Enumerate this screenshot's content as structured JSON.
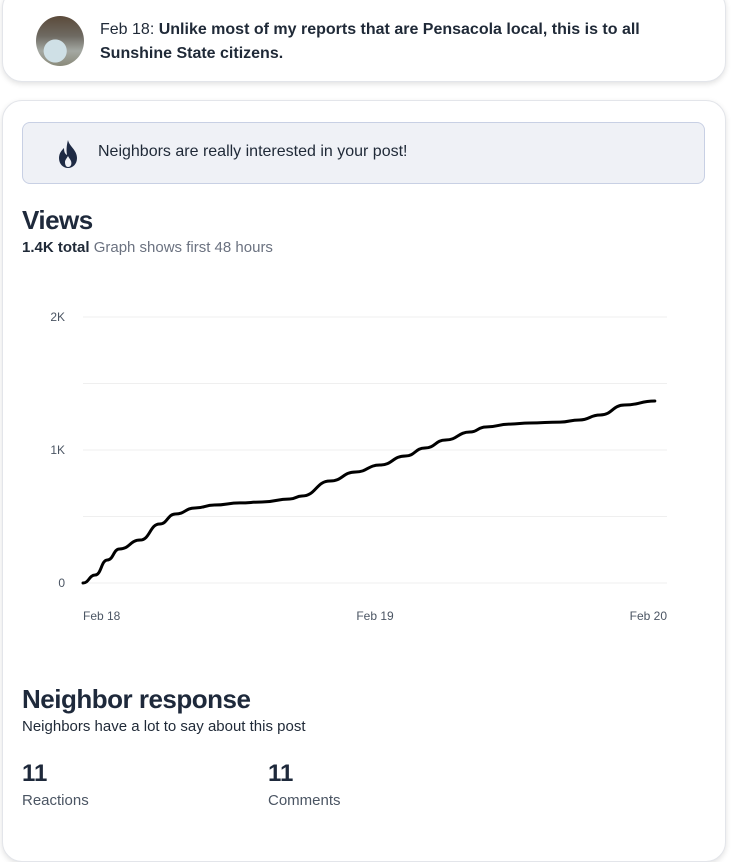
{
  "post": {
    "date": "Feb 18:",
    "text": "Unlike most of my reports that are Pensacola local, this is to all Sunshine State citizens."
  },
  "banner": {
    "icon": "fire-icon",
    "text": "Neighbors are really interested in your post!"
  },
  "views": {
    "title": "Views",
    "total": "1.4K total",
    "note": "Graph shows first 48 hours"
  },
  "chart_data": {
    "type": "line",
    "title": "Views",
    "xlabel": "",
    "ylabel": "",
    "x_unit": "hours since post",
    "xlim": [
      0,
      48
    ],
    "ylim": [
      0,
      2000
    ],
    "y_ticks": [
      {
        "value": 0,
        "label": "0"
      },
      {
        "value": 1000,
        "label": "1K"
      },
      {
        "value": 2000,
        "label": "2K"
      }
    ],
    "gridlines": [
      0,
      500,
      1000,
      1500,
      2000
    ],
    "x_ticks": [
      {
        "value": 0,
        "label": "Feb 18"
      },
      {
        "value": 24,
        "label": "Feb 19"
      },
      {
        "value": 48,
        "label": "Feb 20"
      }
    ],
    "series": [
      {
        "name": "Views",
        "color": "#000000",
        "x": [
          0,
          1,
          2,
          3,
          4.7,
          6.3,
          7.6,
          9.2,
          10.8,
          12.9,
          14.7,
          17,
          18,
          20.3,
          22.4,
          24.4,
          26.5,
          28.1,
          29.8,
          31.8,
          33.1,
          35.1,
          36.7,
          39.2,
          40.8,
          42.5,
          44.5,
          47
        ],
        "y": [
          0,
          60,
          173,
          256,
          323,
          444,
          519,
          564,
          586,
          602,
          609,
          632,
          654,
          767,
          835,
          887,
          955,
          1015,
          1075,
          1135,
          1173,
          1195,
          1203,
          1210,
          1226,
          1263,
          1338,
          1368
        ]
      }
    ]
  },
  "response": {
    "title": "Neighbor response",
    "subtitle": "Neighbors have a lot to say about this post",
    "stats": [
      {
        "value": "11",
        "label": "Reactions"
      },
      {
        "value": "11",
        "label": "Comments"
      }
    ]
  }
}
